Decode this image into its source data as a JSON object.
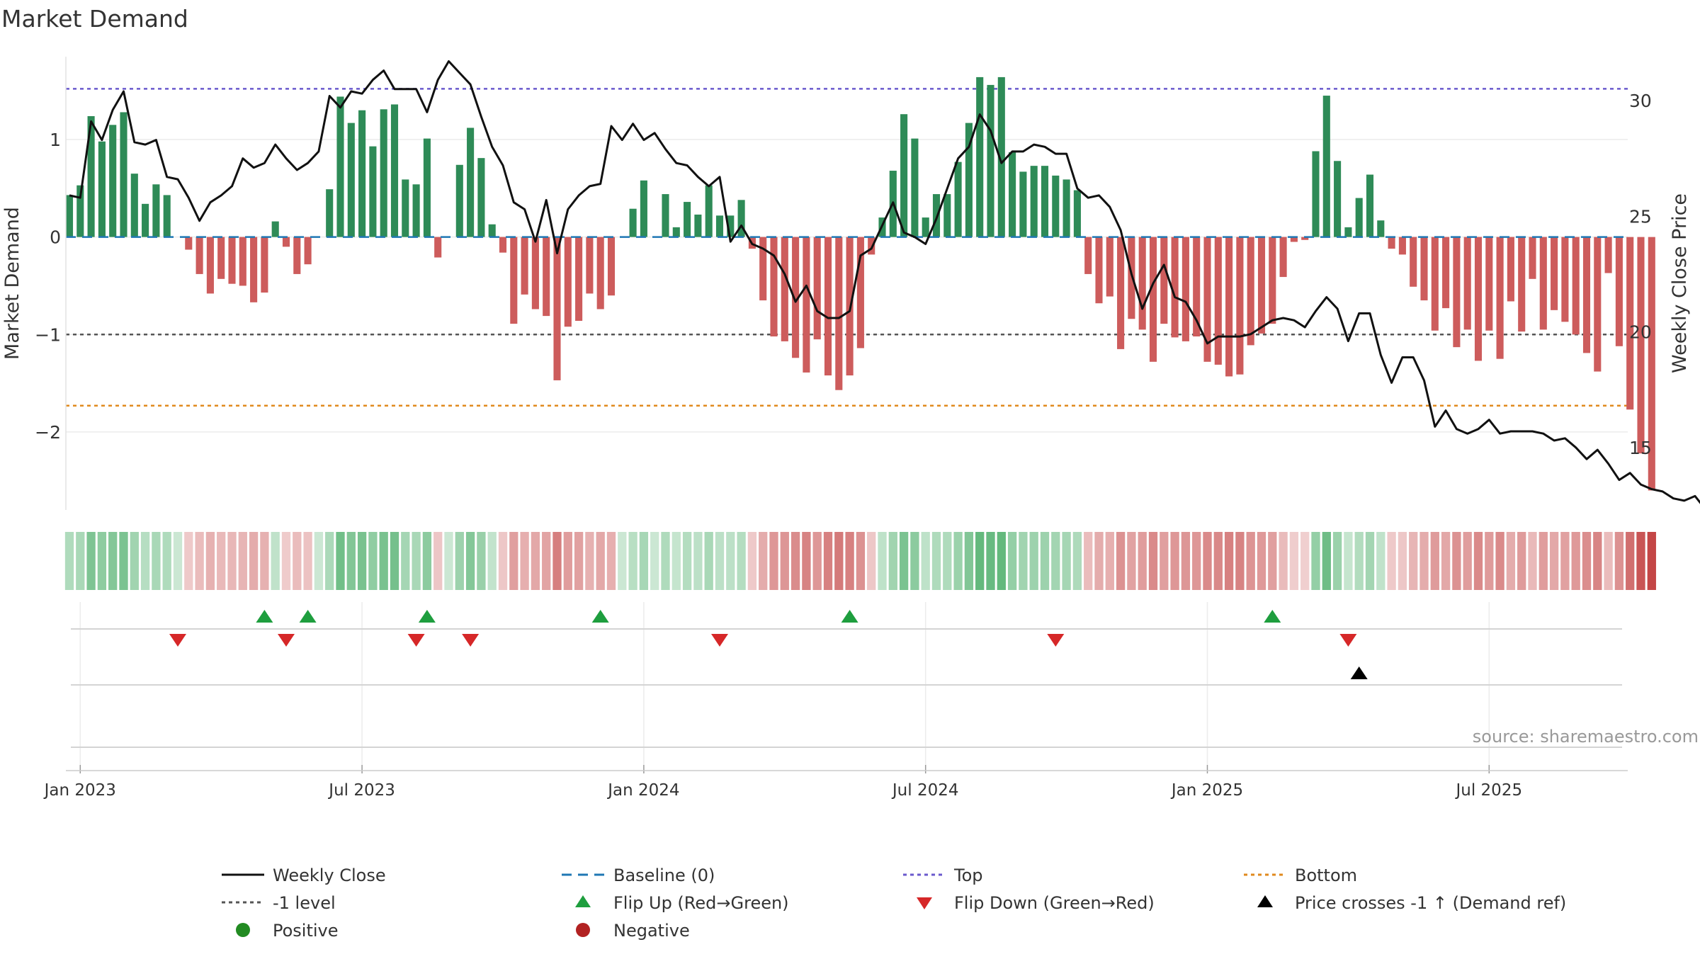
{
  "chart_data": {
    "type": "bar",
    "title": "Market Demand",
    "ylabel": "Market Demand",
    "y2label": "Weekly Close Price",
    "source": "source: sharemaestro.com",
    "ylim": [
      -2.8,
      1.85
    ],
    "y2lim": [
      12.3,
      31.9
    ],
    "yticks": [
      1,
      0,
      -1,
      -2
    ],
    "ytick_labels": [
      "1",
      "0",
      "−1",
      "−2"
    ],
    "y2ticks": [
      30,
      25,
      20,
      15
    ],
    "y2tick_labels": [
      "30",
      "25",
      "20",
      "15"
    ],
    "xticks": [
      {
        "week": 1,
        "label": "Jan 2023"
      },
      {
        "week": 27,
        "label": "Jul 2023"
      },
      {
        "week": 53,
        "label": "Jan 2024"
      },
      {
        "week": 79,
        "label": "Jul 2024"
      },
      {
        "week": 105,
        "label": "Jan 2025"
      },
      {
        "week": 131,
        "label": "Jul 2025"
      }
    ],
    "reference_lines": {
      "top": 1.52,
      "bottom": -1.73,
      "minus_one": -1,
      "baseline": 0
    },
    "colors": {
      "positive": "#2e8b57",
      "negative": "#cd5c5c",
      "close": "#111111",
      "top": "#6a5acd",
      "bottom": "#e08a1e",
      "minus_one": "#555555",
      "baseline": "#1f77b4",
      "flip_up": "#1e9e3e",
      "flip_down": "#d62728",
      "cross": "#000000",
      "positive_dot": "#228b22",
      "negative_dot": "#b22222"
    },
    "series": [
      {
        "name": "Market Demand",
        "values": [
          0.43,
          0.53,
          1.24,
          0.98,
          1.15,
          1.28,
          0.65,
          0.34,
          0.54,
          0.43,
          0,
          -0.13,
          -0.38,
          -0.58,
          -0.43,
          -0.48,
          -0.5,
          -0.67,
          -0.57,
          0.16,
          -0.1,
          -0.38,
          -0.28,
          0,
          0.49,
          1.44,
          1.17,
          1.3,
          0.93,
          1.31,
          1.36,
          0.59,
          0.54,
          1.01,
          -0.21,
          0,
          0.74,
          1.12,
          0.81,
          0.13,
          -0.16,
          -0.89,
          -0.59,
          -0.74,
          -0.81,
          -1.47,
          -0.92,
          -0.86,
          -0.58,
          -0.74,
          -0.6,
          0,
          0.29,
          0.58,
          0,
          0.44,
          0.1,
          0.36,
          0.23,
          0.53,
          0.22,
          0.22,
          0.38,
          -0.12,
          -0.65,
          -1.02,
          -1.07,
          -1.24,
          -1.39,
          -1.05,
          -1.42,
          -1.57,
          -1.42,
          -1.14,
          -0.18,
          0.2,
          0.68,
          1.26,
          1.01,
          0.2,
          0.44,
          0.44,
          0.77,
          1.17,
          1.64,
          1.56,
          1.64,
          0.87,
          0.67,
          0.73,
          0.73,
          0.63,
          0.59,
          0.48,
          -0.38,
          -0.68,
          -0.61,
          -1.15,
          -0.84,
          -0.95,
          -1.28,
          -0.89,
          -1.03,
          -1.07,
          -1.02,
          -1.28,
          -1.31,
          -1.43,
          -1.41,
          -1.11,
          -0.99,
          -0.89,
          -0.41,
          -0.05,
          -0.03,
          0.88,
          1.45,
          0.78,
          0.1,
          0.4,
          0.64,
          0.17,
          -0.12,
          -0.18,
          -0.51,
          -0.65,
          -0.96,
          -0.73,
          -1.13,
          -0.95,
          -1.27,
          -0.96,
          -1.25,
          -0.66,
          -0.97,
          -0.43,
          -0.95,
          -0.75,
          -0.87,
          -1.0,
          -1.19,
          -1.38,
          -0.37,
          -1.12,
          -1.77,
          -2.22,
          -2.6
        ]
      },
      {
        "name": "Weekly Close",
        "values": [
          25.9,
          25.8,
          29.1,
          28.3,
          29.6,
          30.4,
          28.2,
          28.1,
          28.3,
          26.7,
          26.6,
          25.8,
          24.8,
          25.6,
          25.9,
          26.3,
          27.5,
          27.1,
          27.3,
          28.1,
          27.5,
          27.0,
          27.3,
          27.8,
          30.2,
          29.7,
          30.4,
          30.3,
          30.9,
          31.3,
          30.5,
          30.5,
          30.5,
          29.5,
          30.9,
          31.7,
          31.2,
          30.7,
          29.3,
          28.0,
          27.2,
          25.6,
          25.3,
          23.9,
          25.7,
          23.4,
          25.3,
          25.9,
          26.3,
          26.4,
          28.9,
          28.3,
          29.0,
          28.3,
          28.6,
          27.9,
          27.3,
          27.2,
          26.7,
          26.3,
          26.7,
          23.9,
          24.6,
          23.8,
          23.6,
          23.3,
          22.5,
          21.3,
          22.0,
          20.9,
          20.6,
          20.6,
          20.9,
          23.3,
          23.6,
          24.6,
          25.6,
          24.3,
          24.1,
          23.8,
          24.9,
          26.2,
          27.5,
          28.0,
          29.4,
          28.7,
          27.3,
          27.8,
          27.8,
          28.1,
          28.0,
          27.7,
          27.7,
          26.2,
          25.8,
          25.9,
          25.4,
          24.4,
          22.5,
          21.0,
          22.1,
          22.9,
          21.5,
          21.3,
          20.5,
          19.5,
          19.8,
          19.8,
          19.8,
          19.9,
          20.2,
          20.5,
          20.6,
          20.5,
          20.2,
          20.9,
          21.5,
          21.0,
          19.6,
          20.8,
          20.8,
          19.0,
          17.8,
          18.9,
          18.9,
          17.9,
          15.9,
          16.6,
          15.8,
          15.6,
          15.8,
          16.2,
          15.6,
          15.7,
          15.7,
          15.7,
          15.6,
          15.3,
          15.4,
          15.0,
          14.5,
          14.9,
          14.3,
          13.6,
          13.9,
          13.4,
          13.2,
          13.1,
          12.8,
          12.7,
          12.9,
          12.3
        ]
      }
    ],
    "flips_up": [
      18,
      22,
      33,
      49,
      72,
      111
    ],
    "flips_down": [
      10,
      20,
      32,
      37,
      60,
      91,
      118
    ],
    "price_crosses": [
      119
    ],
    "legend": {
      "weekly_close": "Weekly Close",
      "baseline": "Baseline (0)",
      "top": "Top",
      "bottom": "Bottom",
      "minus_one": "-1 level",
      "flip_up": "Flip Up (Red→Green)",
      "flip_down": "Flip Down (Green→Red)",
      "price_cross": "Price crosses -1 ↑ (Demand ref)",
      "positive": "Positive",
      "negative": "Negative"
    }
  }
}
